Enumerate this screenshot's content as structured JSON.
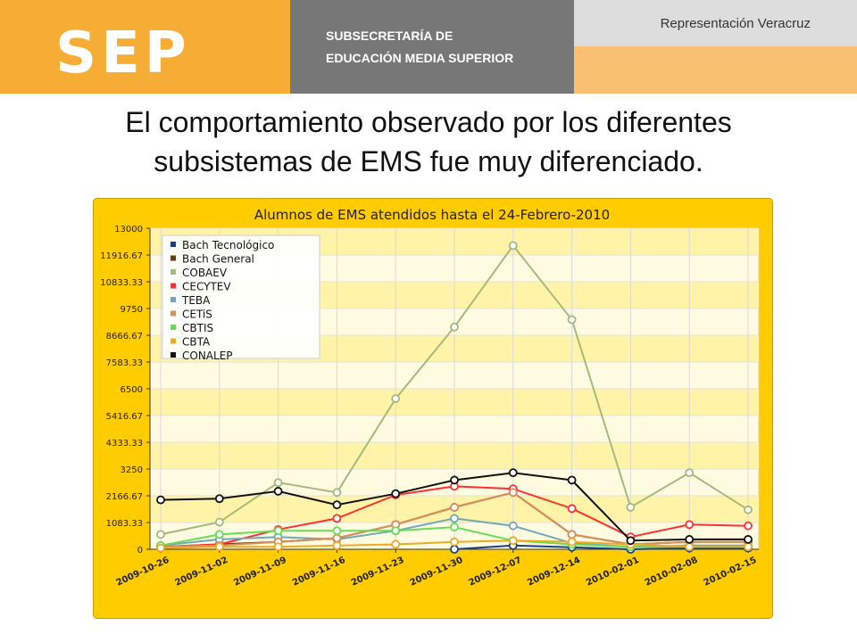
{
  "header": {
    "logo": "SEP",
    "subsecretaria_line1": "SUBSECRETARÍA DE",
    "subsecretaria_line2": "EDUCACIÓN MEDIA SUPERIOR",
    "representacion": "Representación  Veracruz"
  },
  "slide": {
    "title_line1": "El comportamiento observado por los diferentes",
    "title_line2": "subsistemas  de EMS fue  muy diferenciado."
  },
  "colors": {
    "header_orange": "#f5ad36",
    "header_gray": "#777777",
    "chart_frame": "#ffcc00"
  },
  "chart_data": {
    "type": "line",
    "title": "Alumnos de EMS atendidos hasta el 24-Febrero-2010",
    "x": [
      "2009-10-26",
      "2009-11-02",
      "2009-11-09",
      "2009-11-16",
      "2009-11-23",
      "2009-11-30",
      "2009-12-07",
      "2009-12-14",
      "2010-02-01",
      "2010-02-08",
      "2010-02-15"
    ],
    "ylim": [
      0,
      13000
    ],
    "yticks": [
      "0",
      "1083.33",
      "2166.67",
      "3250",
      "4333.33",
      "5416.67",
      "6500",
      "7583.33",
      "8666.67",
      "9750",
      "10833.33",
      "11916.67",
      "13000"
    ],
    "grid": true,
    "legend_position": "top-left",
    "series": [
      {
        "name": "Bach Tecnológico",
        "color": "#1a3e8a",
        "values": [
          null,
          null,
          null,
          null,
          null,
          0,
          150,
          80,
          0,
          50,
          50
        ]
      },
      {
        "name": "Bach General",
        "color": "#6b3a1a",
        "values": [
          100,
          200,
          300,
          450,
          1000,
          1700,
          2300,
          600,
          200,
          300,
          300
        ]
      },
      {
        "name": "COBAEV",
        "color": "#a3ba7c",
        "values": [
          600,
          1100,
          2700,
          2300,
          6100,
          9000,
          12300,
          9300,
          1700,
          3100,
          1600
        ]
      },
      {
        "name": "CECYTEV",
        "color": "#ff3030",
        "values": [
          100,
          200,
          800,
          1250,
          2200,
          2550,
          2450,
          1650,
          500,
          1000,
          950
        ]
      },
      {
        "name": "TEBA",
        "color": "#6fa8b8",
        "values": [
          150,
          400,
          500,
          400,
          750,
          1250,
          950,
          250,
          100,
          150,
          150
        ]
      },
      {
        "name": "CETiS",
        "color": "#d8905a",
        "values": [
          100,
          150,
          300,
          450,
          1000,
          1700,
          2300,
          600,
          200,
          300,
          300
        ]
      },
      {
        "name": "CBTIS",
        "color": "#66dd55",
        "values": [
          150,
          600,
          750,
          750,
          750,
          900,
          350,
          200,
          100,
          100,
          100
        ]
      },
      {
        "name": "CBTA",
        "color": "#eeaa22",
        "values": [
          50,
          100,
          100,
          150,
          200,
          300,
          350,
          300,
          200,
          100,
          100
        ]
      },
      {
        "name": "CONALEP",
        "color": "#111111",
        "values": [
          2000,
          2050,
          2350,
          1800,
          2250,
          2800,
          3100,
          2800,
          350,
          400,
          400
        ]
      }
    ]
  }
}
